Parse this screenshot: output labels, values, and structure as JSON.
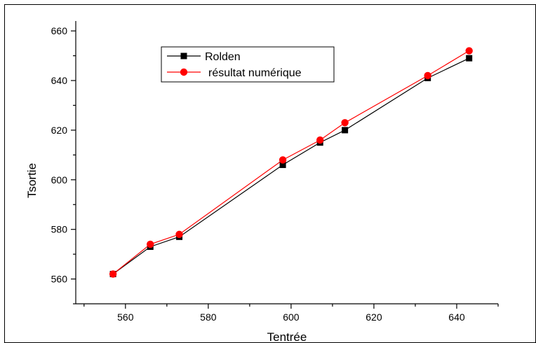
{
  "chart_data": {
    "type": "line",
    "xlabel": "Tentrée",
    "ylabel": "Tsortie",
    "xlim": [
      548,
      650
    ],
    "ylim": [
      550,
      664
    ],
    "xticks": [
      560,
      580,
      600,
      620,
      640
    ],
    "yticks": [
      560,
      580,
      600,
      620,
      640,
      660
    ],
    "legend_position": "top-left",
    "grid": false,
    "series": [
      {
        "name": "Rolden",
        "color": "#000000",
        "marker": "square",
        "x": [
          557,
          566,
          573,
          598,
          607,
          613,
          633,
          643
        ],
        "y": [
          562,
          573,
          577,
          606,
          615,
          620,
          641,
          649
        ]
      },
      {
        "name": "résultat numérique",
        "color": "#ff0000",
        "marker": "circle",
        "x": [
          557,
          566,
          573,
          598,
          607,
          613,
          633,
          643
        ],
        "y": [
          562,
          574,
          578,
          608,
          616,
          623,
          642,
          652
        ]
      }
    ]
  }
}
